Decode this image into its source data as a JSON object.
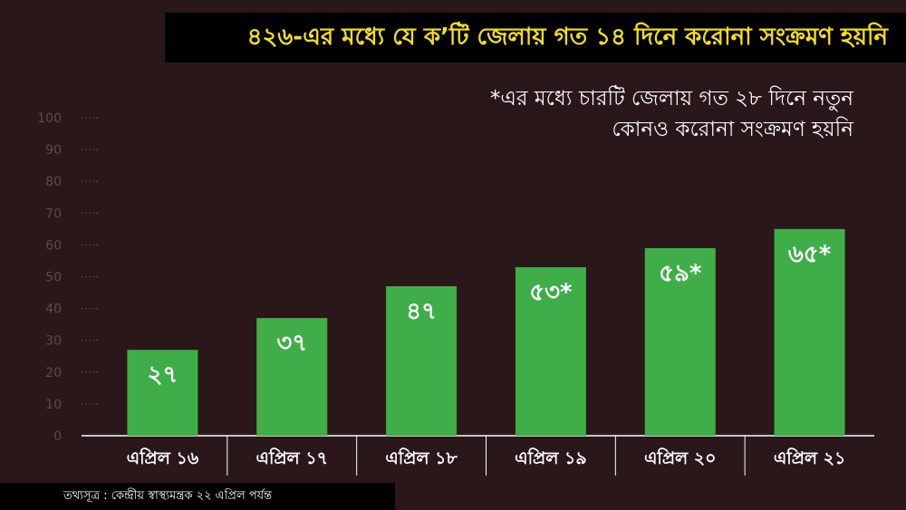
{
  "title": "৪২৬-এর মধ্যে যে ক’টি জেলায় গত ১৪ দিনে করোনা সংক্রমণ হয়নি",
  "note_lines": [
    "*এর মধ্যে চারটি জেলায় গত ২৮ দিনে নতুন",
    "কোনও করোনা সংক্রমণ হয়নি"
  ],
  "source": "তথ্যসূত্র : কেন্দ্রীয় স্বাস্থ্যমন্ত্রক  ২২ এপ্রিল পর্যন্ত",
  "colors": {
    "background": "#2a1719",
    "bar": "#3fae49",
    "title_text": "#f5e019",
    "label_text": "#ffffff",
    "tick_text": "#5e4a4c"
  },
  "chart_data": {
    "type": "bar",
    "categories": [
      "এপ্রিল ১৬",
      "এপ্রিল ১৭",
      "এপ্রিল ১৮",
      "এপ্রিল ১৯",
      "এপ্রিল ২০",
      "এপ্রিল ২১"
    ],
    "values": [
      27,
      37,
      47,
      53,
      59,
      65
    ],
    "data_labels": [
      "২৭",
      "৩৭",
      "৪৭",
      "৫৩*",
      "৫৯*",
      "৬৫*"
    ],
    "ylim": [
      0,
      100
    ],
    "y_ticks": [
      0,
      10,
      20,
      30,
      40,
      50,
      60,
      70,
      80,
      90,
      100
    ],
    "y_tick_labels": [
      "0",
      "10",
      "20",
      "30",
      "40",
      "50",
      "60",
      "70",
      "80",
      "90",
      "100"
    ],
    "grid": false
  }
}
